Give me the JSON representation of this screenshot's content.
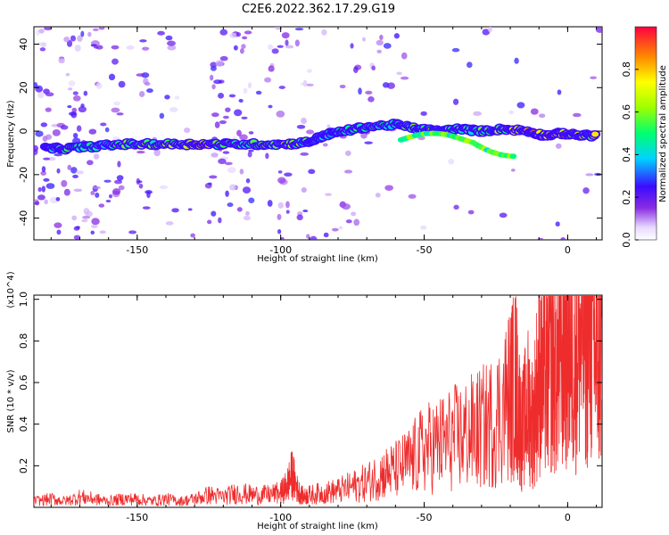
{
  "figure_title": "C2E6.2022.362.17.29.G19",
  "chart_data": [
    {
      "type": "heatmap",
      "title": "C2E6.2022.362.17.29.G19",
      "xlabel": "Height of straight line (km)",
      "ylabel": "Frequency (Hz)",
      "xlim": [
        -186,
        12
      ],
      "ylim": [
        -50,
        48
      ],
      "x_ticks": [
        -150,
        -100,
        -50,
        0
      ],
      "y_ticks": [
        -40,
        -20,
        0,
        20,
        40
      ],
      "x_tick_labels": [
        "-150",
        "-100",
        "-50",
        "0"
      ],
      "y_tick_labels": [
        "-40",
        "-20",
        "0",
        "20",
        "40"
      ],
      "colorbar": {
        "label": "Normalized spectral amplitude",
        "range": [
          0.0,
          1.0
        ],
        "ticks": [
          0.0,
          0.2,
          0.4,
          0.6,
          0.8
        ],
        "tick_labels": [
          "0.0",
          "0.2",
          "0.4",
          "0.6",
          "0.8"
        ]
      },
      "ridge": [
        {
          "x": -182,
          "y": -8,
          "amp": 0.55
        },
        {
          "x": -175,
          "y": -8,
          "amp": 0.55
        },
        {
          "x": -165,
          "y": -7,
          "amp": 0.5
        },
        {
          "x": -155,
          "y": -6,
          "amp": 0.55
        },
        {
          "x": -145,
          "y": -6,
          "amp": 0.6
        },
        {
          "x": -135,
          "y": -6,
          "amp": 0.7
        },
        {
          "x": -127,
          "y": -6,
          "amp": 0.85
        },
        {
          "x": -118,
          "y": -6,
          "amp": 0.6
        },
        {
          "x": -108,
          "y": -6,
          "amp": 0.6
        },
        {
          "x": -98,
          "y": -6,
          "amp": 0.65
        },
        {
          "x": -90,
          "y": -5,
          "amp": 0.5
        },
        {
          "x": -85,
          "y": -2,
          "amp": 0.45
        },
        {
          "x": -78,
          "y": 0,
          "amp": 0.5
        },
        {
          "x": -70,
          "y": 2,
          "amp": 0.55
        },
        {
          "x": -60,
          "y": 3,
          "amp": 0.5
        },
        {
          "x": -52,
          "y": 1,
          "amp": 0.55
        },
        {
          "x": -45,
          "y": 0,
          "amp": 0.6
        },
        {
          "x": -38,
          "y": 1,
          "amp": 0.6
        },
        {
          "x": -30,
          "y": 0,
          "amp": 0.55
        },
        {
          "x": -22,
          "y": 1,
          "amp": 0.65
        },
        {
          "x": -14,
          "y": 0,
          "amp": 0.85
        },
        {
          "x": -8,
          "y": -2,
          "amp": 0.75
        },
        {
          "x": -2,
          "y": -1,
          "amp": 0.85
        },
        {
          "x": 4,
          "y": -2,
          "amp": 0.85
        },
        {
          "x": 10,
          "y": -2,
          "amp": 0.7
        }
      ]
    },
    {
      "type": "line",
      "xlabel": "Height of straight line (km)",
      "ylabel": "SNR (10 * v/v)",
      "y_multiplier": "(x10^4)",
      "xlim": [
        -186,
        12
      ],
      "ylim": [
        0,
        1.02
      ],
      "x_ticks": [
        -150,
        -100,
        -50,
        0
      ],
      "y_ticks": [
        0.2,
        0.4,
        0.6,
        0.8,
        1.0
      ],
      "x_tick_labels": [
        "-150",
        "-100",
        "-50",
        "0"
      ],
      "y_tick_labels": [
        "0.2",
        "0.4",
        "0.6",
        "0.8",
        "1.0"
      ],
      "series": [
        {
          "color": "#ee2c2c",
          "x": [
            -186,
            -180,
            -175,
            -170,
            -165,
            -160,
            -155,
            -150,
            -145,
            -140,
            -135,
            -130,
            -125,
            -120,
            -115,
            -110,
            -105,
            -100,
            -98,
            -96,
            -94,
            -92,
            -90,
            -85,
            -80,
            -75,
            -70,
            -65,
            -60,
            -55,
            -50,
            -45,
            -40,
            -35,
            -30,
            -25,
            -20,
            -18,
            -16,
            -14,
            -12,
            -10,
            -8,
            -6,
            -4,
            -2,
            0,
            2,
            4,
            6,
            8,
            10,
            12
          ],
          "y": [
            0.03,
            0.04,
            0.03,
            0.05,
            0.04,
            0.03,
            0.04,
            0.04,
            0.03,
            0.04,
            0.03,
            0.04,
            0.06,
            0.05,
            0.07,
            0.06,
            0.06,
            0.07,
            0.1,
            0.16,
            0.08,
            0.05,
            0.06,
            0.07,
            0.08,
            0.1,
            0.12,
            0.16,
            0.18,
            0.22,
            0.28,
            0.3,
            0.33,
            0.35,
            0.38,
            0.42,
            0.55,
            0.6,
            0.35,
            0.5,
            0.4,
            0.65,
            0.6,
            0.7,
            0.65,
            0.75,
            0.8,
            0.7,
            0.78,
            0.85,
            0.82,
            0.75,
            0.72
          ]
        }
      ]
    }
  ]
}
